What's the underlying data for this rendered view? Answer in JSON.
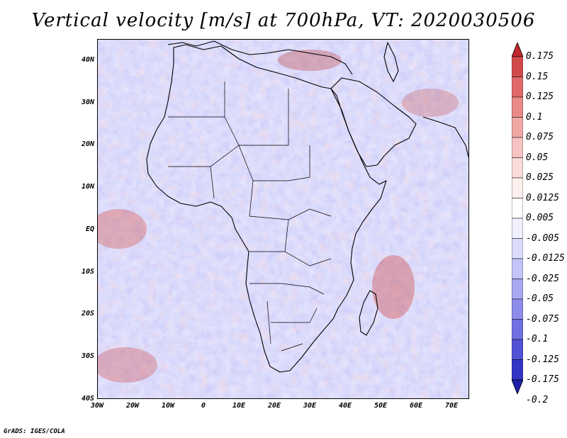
{
  "title": "Vertical velocity [m/s] at 700hPa, VT: 2020030506",
  "footer": "GrADS: IGES/COLA",
  "map": {
    "lon_range": [
      -30,
      75
    ],
    "lat_range": [
      -40,
      45
    ],
    "y_ticks": [
      "40N",
      "30N",
      "20N",
      "10N",
      "EQ",
      "10S",
      "20S",
      "30S",
      "40S"
    ],
    "x_ticks": [
      "30W",
      "20W",
      "10W",
      "0",
      "10E",
      "20E",
      "30E",
      "40E",
      "50E",
      "60E",
      "70E"
    ]
  },
  "colorbar": {
    "labels": [
      "0.175",
      "0.15",
      "0.125",
      "0.1",
      "0.075",
      "0.05",
      "0.025",
      "0.0125",
      "0.005",
      "-0.005",
      "-0.0125",
      "-0.025",
      "-0.05",
      "-0.075",
      "-0.1",
      "-0.125",
      "-0.175",
      "-0.2"
    ],
    "colors": [
      "#c0282d",
      "#d34a4d",
      "#e06a6a",
      "#e98a88",
      "#f0a8a5",
      "#f5c4c2",
      "#f9dcda",
      "#fcefee",
      "#ffffff",
      "#f0f0ff",
      "#dcdcfb",
      "#c4c4f7",
      "#a8a8f2",
      "#8c8ceb",
      "#7070e2",
      "#5252d6",
      "#3434c6",
      "#1e1eaa"
    ]
  }
}
